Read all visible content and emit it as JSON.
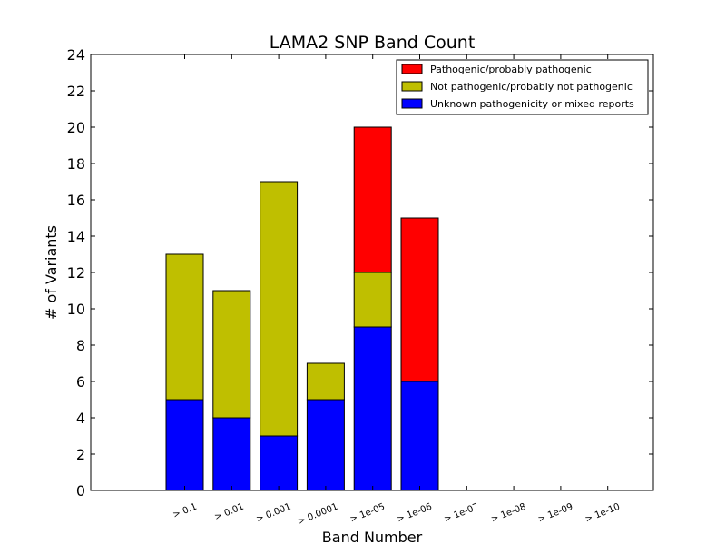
{
  "chart_data": {
    "type": "bar",
    "stacked": true,
    "title": "LAMA2 SNP Band Count",
    "xlabel": "Band Number",
    "ylabel": "# of Variants",
    "ylim": [
      0,
      24
    ],
    "yticks": [
      0,
      2,
      4,
      6,
      8,
      10,
      12,
      14,
      16,
      18,
      20,
      22,
      24
    ],
    "grid": false,
    "legend_position": "top-right",
    "categories": [
      "> 0.1",
      "> 0.01",
      "> 0.001",
      "> 0.0001",
      "> 1e-05",
      "> 1e-06",
      "> 1e-07",
      "> 1e-08",
      "> 1e-09",
      "> 1e-10"
    ],
    "series": [
      {
        "name": "Unknown pathogenicity or mixed reports",
        "color": "#0000ff",
        "values": [
          5,
          4,
          3,
          5,
          9,
          6,
          0,
          0,
          0,
          0
        ]
      },
      {
        "name": "Not pathogenic/probably not pathogenic",
        "color": "#bfbf00",
        "values": [
          8,
          7,
          14,
          2,
          3,
          0,
          0,
          0,
          0,
          0
        ]
      },
      {
        "name": "Pathogenic/probably pathogenic",
        "color": "#ff0000",
        "values": [
          0,
          0,
          0,
          0,
          8,
          9,
          0,
          0,
          0,
          0
        ]
      }
    ],
    "legend_order": [
      "Pathogenic/probably pathogenic",
      "Not pathogenic/probably not pathogenic",
      "Unknown pathogenicity or mixed reports"
    ]
  }
}
